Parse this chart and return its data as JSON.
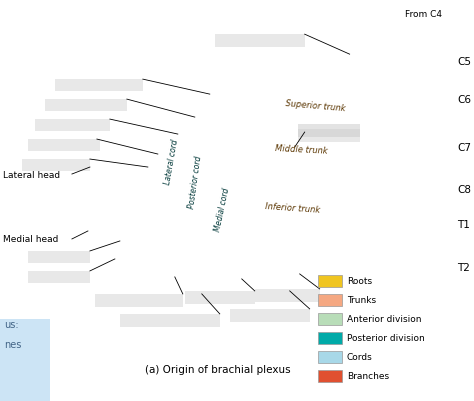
{
  "bg_color": "#ffffff",
  "title_caption": "(a) Origin of brachial plexus",
  "from_c4_label": "From C4",
  "nerve_roots": [
    "C5",
    "C6",
    "C7",
    "C8",
    "T1",
    "T2"
  ],
  "nerve_root_color": "#f0c520",
  "trunk_color": "#f5a882",
  "anterior_div_color": "#b8ddb8",
  "posterior_div_color": "#00aaa8",
  "cord_color": "#a8d8e8",
  "branch_color": "#e05030",
  "legend_items": [
    {
      "label": "Roots",
      "color": "#f0c520"
    },
    {
      "label": "Trunks",
      "color": "#f5a882"
    },
    {
      "label": "Anterior division",
      "color": "#b8ddb8"
    },
    {
      "label": "Posterior division",
      "color": "#00aaa8"
    },
    {
      "label": "Cords",
      "color": "#a8d8e8"
    },
    {
      "label": "Branches",
      "color": "#e05030"
    }
  ],
  "blue_box_color": "#cce4f5",
  "blue_box_text1": "us:",
  "blue_box_text2": "nes",
  "blank_color": "#cccccc",
  "blank_alpha": 0.45
}
